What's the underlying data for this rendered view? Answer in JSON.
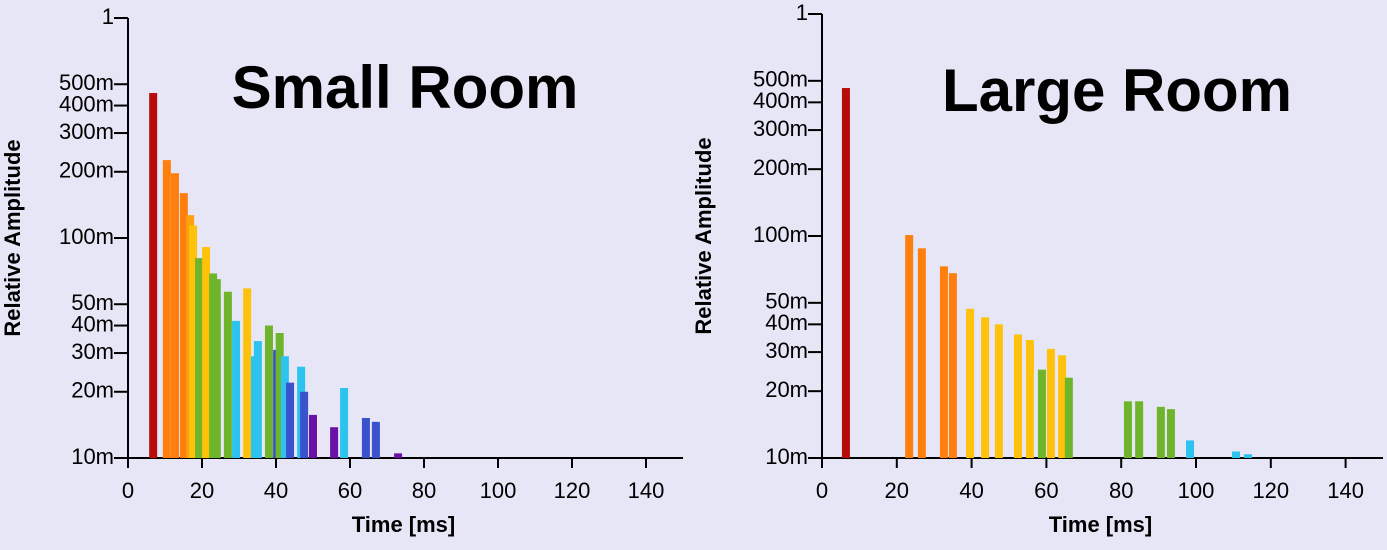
{
  "chart_data": [
    {
      "type": "bar",
      "title": "Small Room",
      "xlabel": "Time [ms]",
      "ylabel": "Relative Amplitude",
      "log_y": true,
      "xlim": [
        0,
        150
      ],
      "xticks": [
        0,
        20,
        40,
        60,
        80,
        100,
        120,
        140
      ],
      "ylim": [
        0.01,
        1
      ],
      "yticks": [
        {
          "value": 0.01,
          "label": "10m"
        },
        {
          "value": 0.02,
          "label": "20m"
        },
        {
          "value": 0.03,
          "label": "30m"
        },
        {
          "value": 0.04,
          "label": "40m"
        },
        {
          "value": 0.05,
          "label": "50m"
        },
        {
          "value": 0.1,
          "label": "100m"
        },
        {
          "value": 0.2,
          "label": "200m"
        },
        {
          "value": 0.3,
          "label": "300m"
        },
        {
          "value": 0.4,
          "label": "400m"
        },
        {
          "value": 0.5,
          "label": "500m"
        },
        1
      ],
      "x": [
        6.8,
        10.5,
        12.7,
        15.1,
        16.8,
        17.6,
        19.2,
        21.1,
        23,
        24,
        27,
        29.2,
        32.2,
        34.3,
        35.1,
        38.1,
        40.3,
        41,
        42.4,
        43.8,
        46.8,
        47.6,
        50,
        55.7,
        58.4,
        64.3,
        67,
        73
      ],
      "values": [
        0.456,
        0.226,
        0.197,
        0.16,
        0.127,
        0.114,
        0.081,
        0.091,
        0.069,
        0.065,
        0.057,
        0.042,
        0.059,
        0.029,
        0.034,
        0.04,
        0.031,
        0.037,
        0.029,
        0.022,
        0.026,
        0.02,
        0.0157,
        0.0138,
        0.0208,
        0.0152,
        0.0146,
        0.0105
      ],
      "colors": [
        "#b80c0c",
        "#ff7f0e",
        "#ff7f0e",
        "#ff7f0e",
        "#ffa010",
        "#ffc20a",
        "#6fb52c",
        "#ffc20a",
        "#6fb52c",
        "#6fb52c",
        "#6fb52c",
        "#2cc4ee",
        "#ffc20a",
        "#2cc4ee",
        "#2cc4ee",
        "#6fb52c",
        "#3a52cc",
        "#6fb52c",
        "#2cc4ee",
        "#3a52cc",
        "#2cc4ee",
        "#3a52cc",
        "#6a12a8",
        "#6a12a8",
        "#2cc4ee",
        "#3a52cc",
        "#3a52cc",
        "#6a12a8"
      ]
    },
    {
      "type": "bar",
      "title": "Large Room",
      "xlabel": "Time [ms]",
      "ylabel": "Relative Amplitude",
      "log_y": true,
      "xlim": [
        0,
        150
      ],
      "xticks": [
        0,
        20,
        40,
        60,
        80,
        100,
        120,
        140
      ],
      "ylim": [
        0.01,
        1
      ],
      "yticks": [
        {
          "value": 0.01,
          "label": "10m"
        },
        {
          "value": 0.02,
          "label": "20m"
        },
        {
          "value": 0.03,
          "label": "30m"
        },
        {
          "value": 0.04,
          "label": "40m"
        },
        {
          "value": 0.05,
          "label": "50m"
        },
        {
          "value": 0.1,
          "label": "100m"
        },
        {
          "value": 0.2,
          "label": "200m"
        },
        {
          "value": 0.3,
          "label": "300m"
        },
        {
          "value": 0.4,
          "label": "400m"
        },
        {
          "value": 0.5,
          "label": "500m"
        },
        1
      ],
      "x": [
        6.4,
        23.3,
        26.7,
        32.6,
        35,
        39.6,
        43.6,
        47.3,
        52.4,
        55.6,
        58.8,
        61.2,
        64.2,
        66,
        81.8,
        84.8,
        90.6,
        93.3,
        98.4,
        110.7,
        113.9
      ],
      "values": [
        0.464,
        0.101,
        0.088,
        0.073,
        0.068,
        0.047,
        0.043,
        0.04,
        0.036,
        0.034,
        0.025,
        0.031,
        0.029,
        0.023,
        0.018,
        0.018,
        0.017,
        0.0166,
        0.012,
        0.0107,
        0.0104
      ],
      "colors": [
        "#b80c0c",
        "#ff7f0e",
        "#ff7f0e",
        "#ff7f0e",
        "#ff7f0e",
        "#ffc20a",
        "#ffc20a",
        "#ffc20a",
        "#ffc20a",
        "#ffc20a",
        "#6fb52c",
        "#ffc20a",
        "#ffc20a",
        "#6fb52c",
        "#6fb52c",
        "#6fb52c",
        "#6fb52c",
        "#6fb52c",
        "#2cc4ee",
        "#2cc4ee",
        "#2cc4ee"
      ]
    }
  ]
}
